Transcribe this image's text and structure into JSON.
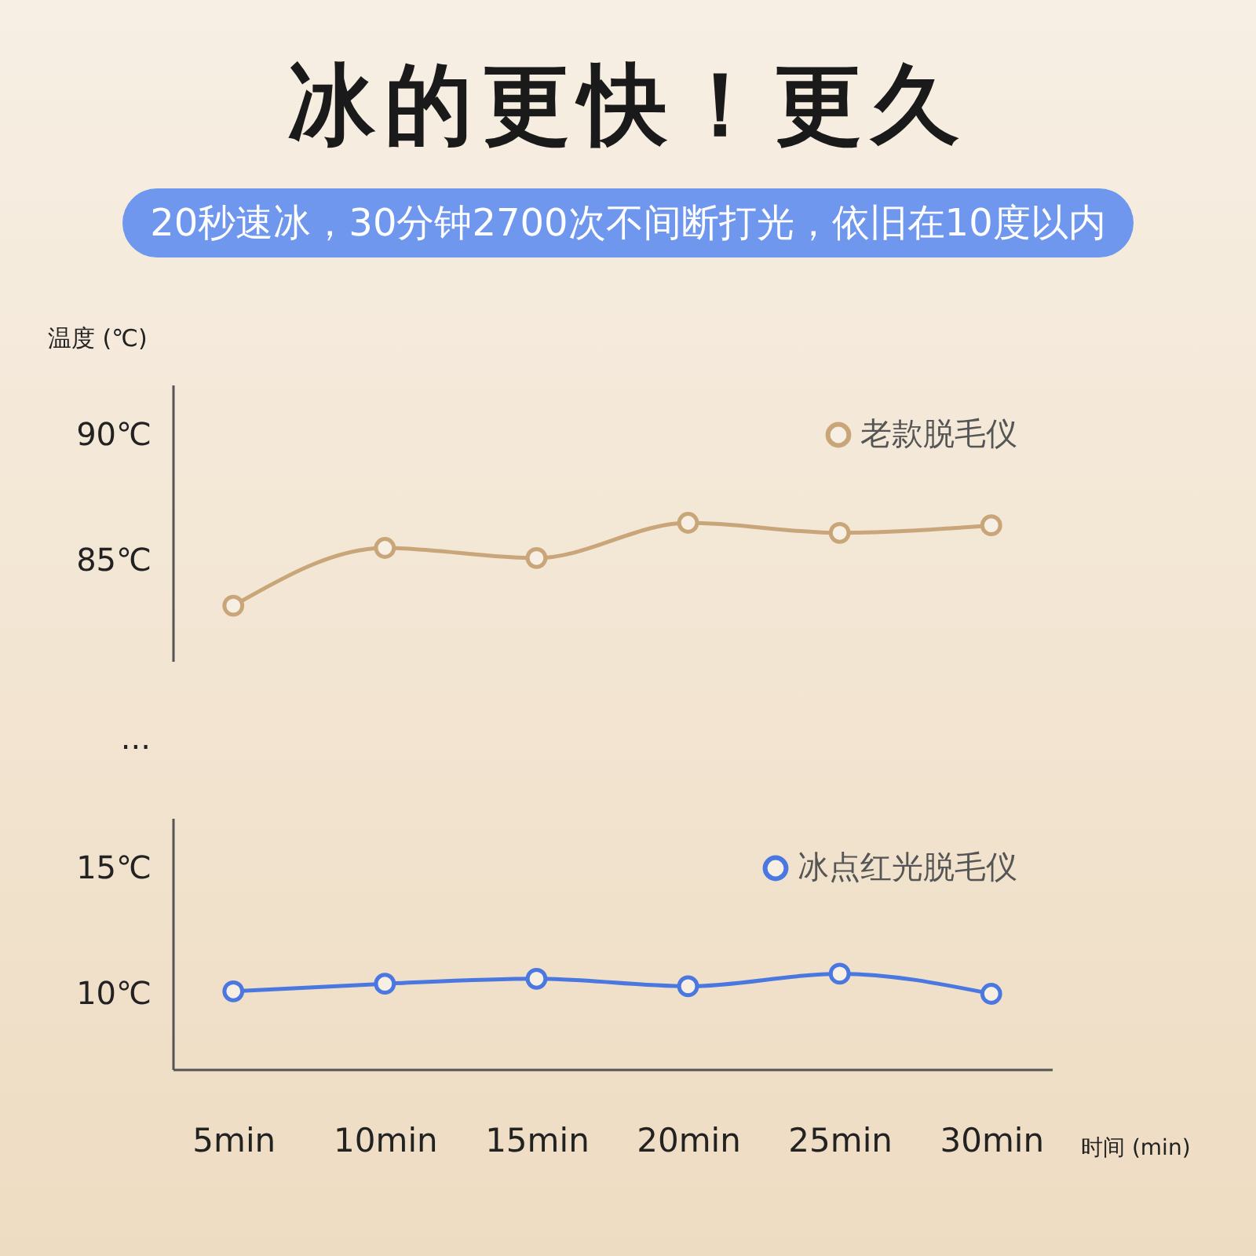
{
  "chart_data": [
    {
      "type": "line",
      "title": "冰的更快！更久",
      "subtitle": "20秒速冰，30分钟2700次不间断打光，依旧在10度以内",
      "ylabel": "温度 (℃)",
      "categories": [
        "5min",
        "10min",
        "15min",
        "20min",
        "25min",
        "30min"
      ],
      "series": [
        {
          "name": "老款脱毛仪",
          "color": "#c9a679",
          "values": [
            83.2,
            85.5,
            85.1,
            86.5,
            86.1,
            86.4
          ]
        }
      ],
      "ylim": [
        81,
        92
      ],
      "yticks": [
        {
          "value": 85,
          "label": "85℃"
        },
        {
          "value": 90,
          "label": "90℃"
        }
      ],
      "tick_labels": "y",
      "legend": "top right",
      "marker": "circle",
      "annotations": [
        "..."
      ]
    },
    {
      "type": "line",
      "xlabel": "时间 (min)",
      "categories": [
        "5min",
        "10min",
        "15min",
        "20min",
        "25min",
        "30min"
      ],
      "series": [
        {
          "name": "冰点红光脱毛仪",
          "color": "#4a78e0",
          "values": [
            10.1,
            10.4,
            10.6,
            10.3,
            10.8,
            10.0
          ]
        }
      ],
      "ylim": [
        7,
        17
      ],
      "yticks": [
        {
          "value": 10,
          "label": "10℃"
        },
        {
          "value": 15,
          "label": "15℃"
        }
      ],
      "legend": "top right",
      "marker": "circle"
    }
  ]
}
